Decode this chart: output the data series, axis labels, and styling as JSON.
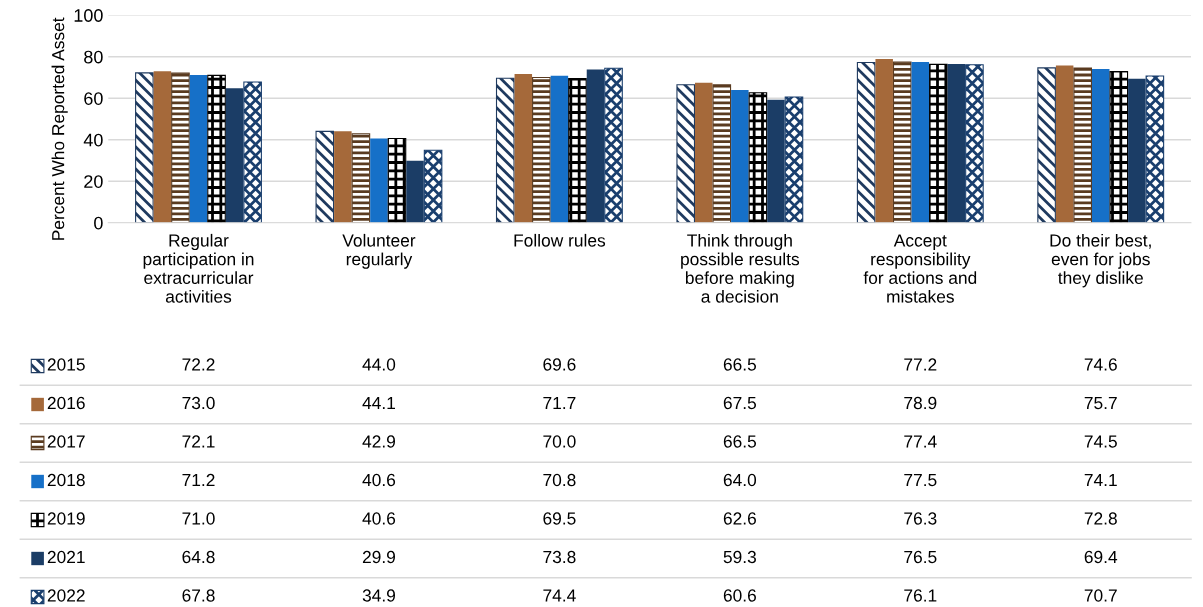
{
  "chart_data": {
    "type": "bar",
    "ylabel": "Percent Who Reported Asset",
    "categories": [
      "Regular\nparticipation in\nextracurricular\nactivities",
      "Volunteer\nregularly",
      "Follow rules",
      "Think through\npossible results\nbefore making\na decision",
      "Accept\nresponsibility\nfor actions and\nmistakes",
      "Do their best,\neven for jobs\nthey dislike"
    ],
    "series": [
      {
        "name": "2015",
        "color": "#1f3a5f",
        "values": [
          72.2,
          44.0,
          69.6,
          66.5,
          77.2,
          74.6
        ],
        "value_labels": [
          "72.2",
          "44.0",
          "69.6",
          "66.5",
          "77.2",
          "74.6"
        ]
      },
      {
        "name": "2016",
        "color": "#a5693a",
        "values": [
          73.0,
          44.1,
          71.7,
          67.5,
          78.9,
          75.7
        ],
        "value_labels": [
          "73.0",
          "44.1",
          "71.7",
          "67.5",
          "78.9",
          "75.7"
        ]
      },
      {
        "name": "2017",
        "color": "#5a3b20",
        "values": [
          72.1,
          42.9,
          70.0,
          66.5,
          77.4,
          74.5
        ],
        "value_labels": [
          "72.1",
          "42.9",
          "70.0",
          "66.5",
          "77.4",
          "74.5"
        ]
      },
      {
        "name": "2018",
        "color": "#1670c8",
        "values": [
          71.2,
          40.6,
          70.8,
          64.0,
          77.5,
          74.1
        ],
        "value_labels": [
          "71.2",
          "40.6",
          "70.8",
          "64.0",
          "77.5",
          "74.1"
        ]
      },
      {
        "name": "2019",
        "color": "#000000",
        "values": [
          71.0,
          40.6,
          69.5,
          62.6,
          76.3,
          72.8
        ],
        "value_labels": [
          "71.0",
          "40.6",
          "69.5",
          "62.6",
          "76.3",
          "72.8"
        ]
      },
      {
        "name": "2021",
        "color": "#1b3d66",
        "values": [
          64.8,
          29.9,
          73.8,
          59.3,
          76.5,
          69.4
        ],
        "value_labels": [
          "64.8",
          "29.9",
          "73.8",
          "59.3",
          "76.5",
          "69.4"
        ]
      },
      {
        "name": "2022",
        "color": "#1a3f6e",
        "values": [
          67.8,
          34.9,
          74.4,
          60.6,
          76.1,
          70.7
        ],
        "value_labels": [
          "67.8",
          "34.9",
          "74.4",
          "60.6",
          "76.1",
          "70.7"
        ]
      }
    ],
    "ylim": [
      0,
      100
    ],
    "yticks": [
      0,
      20,
      40,
      60,
      80,
      100
    ],
    "grid": "y",
    "legend": "bottom"
  }
}
